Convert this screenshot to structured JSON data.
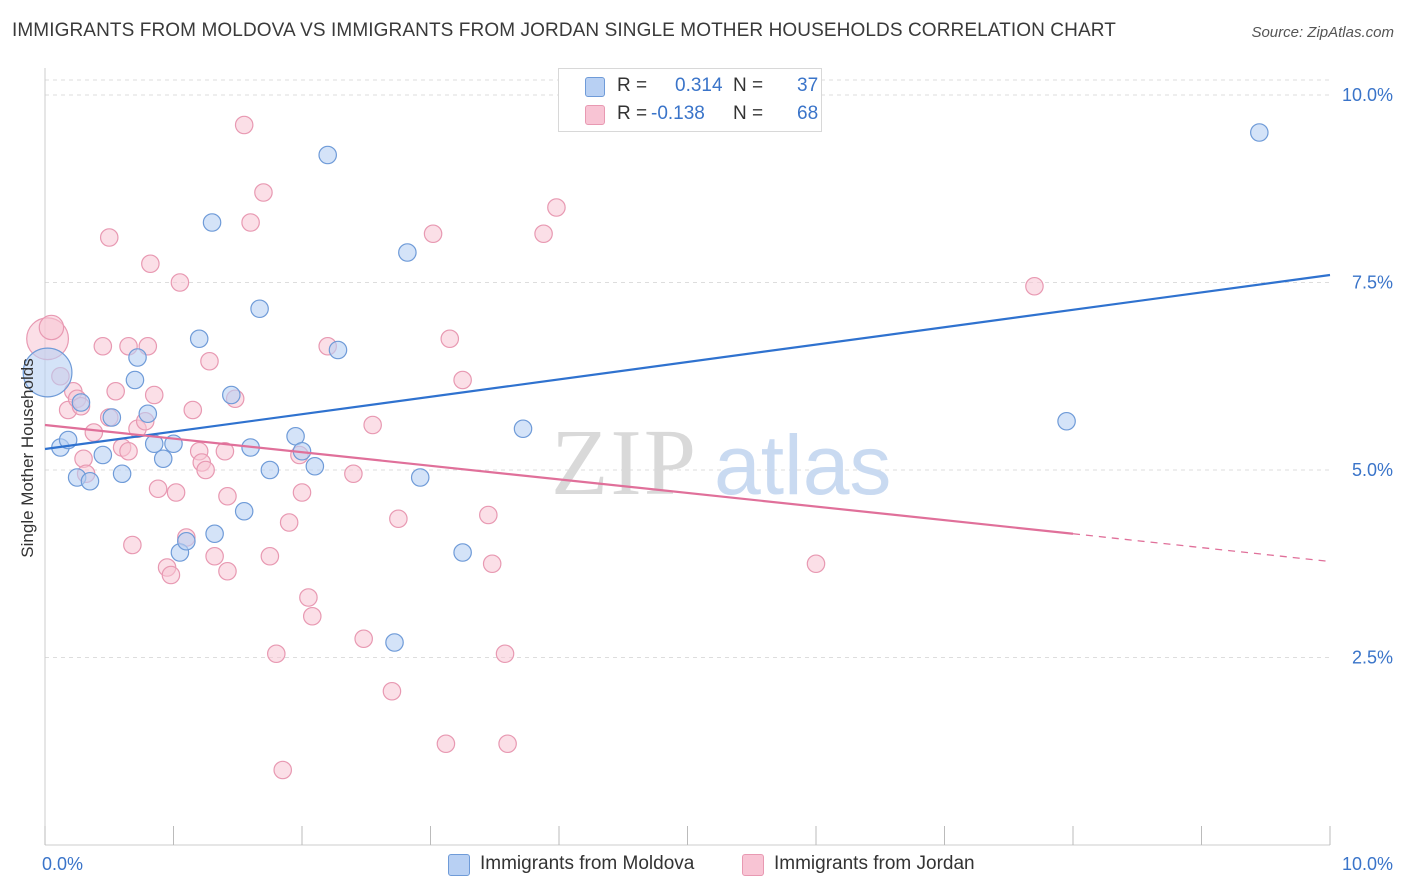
{
  "title": "IMMIGRANTS FROM MOLDOVA VS IMMIGRANTS FROM JORDAN SINGLE MOTHER HOUSEHOLDS CORRELATION CHART",
  "source": "Source: ZipAtlas.com",
  "watermark": {
    "zip": "ZIP",
    "atlas": "atlas"
  },
  "legend": {
    "moldova": {
      "r_label": "R =",
      "r_value": "0.314",
      "n_label": "N =",
      "n_value": "37"
    },
    "jordan": {
      "r_label": "R =",
      "r_value": "-0.138",
      "n_label": "N =",
      "n_value": "68"
    }
  },
  "colors": {
    "moldova_fill": "#b8d0f3",
    "moldova_stroke": "#6f9bd8",
    "moldova_line": "#2f72cf",
    "jordan_fill": "#f8c4d4",
    "jordan_stroke": "#e899b2",
    "jordan_line": "#e0709a",
    "tick_label": "#3a74c9",
    "grid": "#dddddd"
  },
  "chart_data": {
    "type": "scatter",
    "title": "IMMIGRANTS FROM MOLDOVA VS IMMIGRANTS FROM JORDAN SINGLE MOTHER HOUSEHOLDS CORRELATION CHART",
    "xlabel": "",
    "ylabel": "Single Mother Households",
    "xlim": [
      0,
      10
    ],
    "ylim": [
      0,
      10.2
    ],
    "x_tick_labels": [
      "0.0%",
      "10.0%"
    ],
    "y_ticks": [
      2.5,
      5.0,
      7.5,
      10.0
    ],
    "y_tick_labels": [
      "2.5%",
      "5.0%",
      "7.5%",
      "10.0%"
    ],
    "grid": "horizontal dashed",
    "legend_position": "top-center",
    "series": [
      {
        "name": "Immigrants from Moldova",
        "r": 0.314,
        "n": 37,
        "trend": {
          "x": [
            0.0,
            10.0
          ],
          "y": [
            5.28,
            7.6
          ]
        },
        "points": [
          [
            0.02,
            6.3,
            28
          ],
          [
            0.12,
            5.3,
            10
          ],
          [
            0.18,
            5.4,
            10
          ],
          [
            0.25,
            4.9,
            10
          ],
          [
            0.28,
            5.9,
            10
          ],
          [
            0.35,
            4.85,
            10
          ],
          [
            0.45,
            5.2,
            10
          ],
          [
            0.52,
            5.7,
            10
          ],
          [
            0.6,
            4.95,
            10
          ],
          [
            0.7,
            6.2,
            10
          ],
          [
            0.72,
            6.5,
            10
          ],
          [
            0.8,
            5.75,
            10
          ],
          [
            0.85,
            5.35,
            10
          ],
          [
            0.92,
            5.15,
            10
          ],
          [
            1.0,
            5.35,
            10
          ],
          [
            1.05,
            3.9,
            10
          ],
          [
            1.1,
            4.05,
            10
          ],
          [
            1.2,
            6.75,
            10
          ],
          [
            1.3,
            8.3,
            10
          ],
          [
            1.32,
            4.15,
            10
          ],
          [
            1.45,
            6.0,
            10
          ],
          [
            1.55,
            4.45,
            10
          ],
          [
            1.6,
            5.3,
            10
          ],
          [
            1.67,
            7.15,
            10
          ],
          [
            1.75,
            5.0,
            10
          ],
          [
            1.95,
            5.45,
            10
          ],
          [
            2.0,
            5.25,
            10
          ],
          [
            2.1,
            5.05,
            10
          ],
          [
            2.2,
            9.2,
            10
          ],
          [
            2.28,
            6.6,
            10
          ],
          [
            2.72,
            2.7,
            10
          ],
          [
            2.82,
            7.9,
            10
          ],
          [
            2.92,
            4.9,
            10
          ],
          [
            3.25,
            3.9,
            10
          ],
          [
            3.72,
            5.55,
            10
          ],
          [
            7.95,
            5.65,
            10
          ],
          [
            9.45,
            9.5,
            10
          ]
        ]
      },
      {
        "name": "Immigrants from Jordan",
        "r": -0.138,
        "n": 68,
        "trend": {
          "x": [
            0.0,
            8.0
          ],
          "y": [
            5.6,
            4.15
          ]
        },
        "trend_dashed": {
          "x": [
            8.0,
            10.0
          ],
          "y": [
            4.15,
            3.78
          ]
        },
        "points": [
          [
            0.02,
            6.75,
            24
          ],
          [
            0.05,
            6.9,
            14
          ],
          [
            0.12,
            6.25,
            10
          ],
          [
            0.18,
            5.8,
            10
          ],
          [
            0.22,
            6.05,
            10
          ],
          [
            0.25,
            5.95,
            10
          ],
          [
            0.28,
            5.85,
            10
          ],
          [
            0.3,
            5.15,
            10
          ],
          [
            0.32,
            4.95,
            10
          ],
          [
            0.38,
            5.5,
            10
          ],
          [
            0.45,
            6.65,
            10
          ],
          [
            0.5,
            8.1,
            10
          ],
          [
            0.5,
            5.7,
            10
          ],
          [
            0.55,
            6.05,
            10
          ],
          [
            0.6,
            5.3,
            10
          ],
          [
            0.65,
            6.65,
            10
          ],
          [
            0.65,
            5.25,
            10
          ],
          [
            0.68,
            4.0,
            10
          ],
          [
            0.72,
            5.55,
            10
          ],
          [
            0.78,
            5.65,
            10
          ],
          [
            0.8,
            6.65,
            10
          ],
          [
            0.82,
            7.75,
            10
          ],
          [
            0.85,
            6.0,
            10
          ],
          [
            0.88,
            4.75,
            10
          ],
          [
            0.95,
            3.7,
            10
          ],
          [
            0.98,
            3.6,
            10
          ],
          [
            1.02,
            4.7,
            10
          ],
          [
            1.05,
            7.5,
            10
          ],
          [
            1.1,
            4.1,
            10
          ],
          [
            1.15,
            5.8,
            10
          ],
          [
            1.2,
            5.25,
            10
          ],
          [
            1.22,
            5.1,
            10
          ],
          [
            1.25,
            5.0,
            10
          ],
          [
            1.28,
            6.45,
            10
          ],
          [
            1.32,
            3.85,
            10
          ],
          [
            1.4,
            5.25,
            10
          ],
          [
            1.42,
            4.65,
            10
          ],
          [
            1.42,
            3.65,
            10
          ],
          [
            1.48,
            5.95,
            10
          ],
          [
            1.55,
            9.6,
            10
          ],
          [
            1.6,
            8.3,
            10
          ],
          [
            1.7,
            8.7,
            10
          ],
          [
            1.75,
            3.85,
            10
          ],
          [
            1.8,
            2.55,
            10
          ],
          [
            1.85,
            1.0,
            10
          ],
          [
            1.9,
            4.3,
            10
          ],
          [
            1.98,
            5.2,
            10
          ],
          [
            2.0,
            4.7,
            10
          ],
          [
            2.05,
            3.3,
            10
          ],
          [
            2.08,
            3.05,
            10
          ],
          [
            2.2,
            6.65,
            10
          ],
          [
            2.4,
            4.95,
            10
          ],
          [
            2.48,
            2.75,
            10
          ],
          [
            2.55,
            5.6,
            10
          ],
          [
            2.7,
            2.05,
            10
          ],
          [
            2.75,
            4.35,
            10
          ],
          [
            3.02,
            8.15,
            10
          ],
          [
            3.12,
            1.35,
            10
          ],
          [
            3.15,
            6.75,
            10
          ],
          [
            3.25,
            6.2,
            10
          ],
          [
            3.45,
            4.4,
            10
          ],
          [
            3.48,
            3.75,
            10
          ],
          [
            3.58,
            2.55,
            10
          ],
          [
            3.6,
            1.35,
            10
          ],
          [
            3.88,
            8.15,
            10
          ],
          [
            3.98,
            8.5,
            10
          ],
          [
            6.0,
            3.75,
            10
          ],
          [
            7.7,
            7.45,
            10
          ]
        ]
      }
    ]
  },
  "bottom_legend": {
    "moldova_label": "Immigrants from Moldova",
    "jordan_label": "Immigrants from Jordan"
  }
}
